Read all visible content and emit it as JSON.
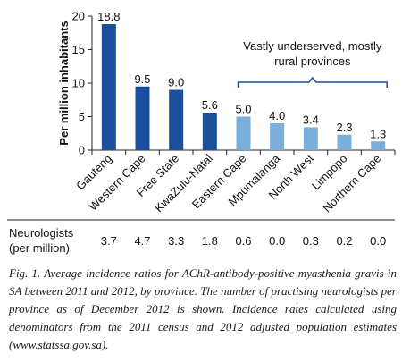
{
  "chart_data": {
    "type": "bar",
    "title": "",
    "xlabel": "",
    "ylabel": "Per million inhabitants",
    "ylim": [
      0,
      20
    ],
    "yticks": [
      0,
      5,
      10,
      15,
      20
    ],
    "grid": false,
    "categories": [
      "Gauteng",
      "Western Cape",
      "Free State",
      "KwaZulu-Natal",
      "Eastern Cape",
      "Mpumalanga",
      "North West",
      "Limpopo",
      "Northern Cape"
    ],
    "values": [
      18.8,
      9.5,
      9.0,
      5.6,
      5.0,
      4.0,
      3.4,
      2.3,
      1.3
    ],
    "value_labels": [
      "18.8",
      "9.5",
      "9.0",
      "5.6",
      "5.0",
      "4.0",
      "3.4",
      "2.3",
      "1.3"
    ],
    "colors": [
      "#1b4f9c",
      "#1b4f9c",
      "#1b4f9c",
      "#1b4f9c",
      "#7aaedb",
      "#7aaedb",
      "#7aaedb",
      "#7aaedb",
      "#7aaedb"
    ],
    "annotation": {
      "text_line1": "Vastly underserved, mostly",
      "text_line2": "rural provinces",
      "bracket_from_category": "Eastern Cape",
      "bracket_to_category": "Northern Cape",
      "color": "#1b4f9c"
    }
  },
  "neurologists": {
    "label_line1": "Neurologists",
    "label_line2": "(per million)",
    "values": [
      "3.7",
      "4.7",
      "3.3",
      "1.8",
      "0.6",
      "0.0",
      "0.3",
      "0.2",
      "0.0"
    ]
  },
  "caption": "Fig. 1. Average incidence ratios for AChR-antibody-positive myasthenia gravis in SA between 2011 and 2012, by province. The number of practising neurologists per province as of December 2012 is shown. Incidence rates calculated using denominators from the 2011 census and 2012 adjusted population estimates (www.statssa.gov.sa).",
  "colors": {
    "dark_bar": "#1b4f9c",
    "light_bar": "#7aaedb",
    "axis": "#222222"
  }
}
